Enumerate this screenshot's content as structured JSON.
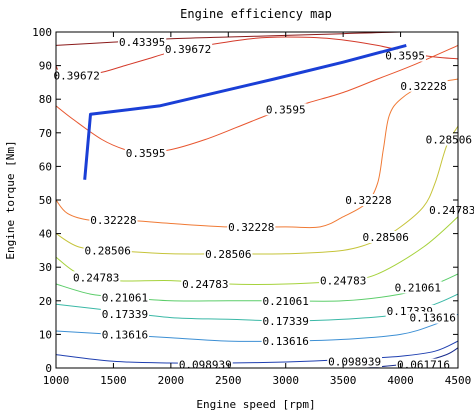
{
  "chart_data": {
    "type": "contour",
    "title": "Engine efficiency map",
    "xlabel": "Engine speed [rpm]",
    "ylabel": "Engine torque [Nm]",
    "xlim": [
      1000,
      4500
    ],
    "ylim": [
      0,
      100
    ],
    "xticks": [
      1000,
      1500,
      2000,
      2500,
      3000,
      3500,
      4000,
      4500
    ],
    "yticks": [
      0,
      10,
      20,
      30,
      40,
      50,
      60,
      70,
      80,
      90,
      100
    ],
    "grid": false,
    "contours": [
      {
        "level": "0.43395",
        "color": "#8b1a1a",
        "points": [
          [
            1000,
            96
          ],
          [
            1500,
            97
          ],
          [
            2000,
            98
          ],
          [
            2500,
            98.5
          ],
          [
            3000,
            99
          ],
          [
            3500,
            99.5
          ],
          [
            4000,
            100
          ],
          [
            4400,
            100
          ]
        ],
        "labels": [
          {
            "x": 1750,
            "y": 97
          }
        ]
      },
      {
        "level": "0.39672",
        "color": "#d43a2a",
        "points": [
          [
            1000,
            90
          ],
          [
            1050,
            87
          ],
          [
            1200,
            87
          ],
          [
            1400,
            88
          ],
          [
            1600,
            90
          ],
          [
            1800,
            92
          ],
          [
            2000,
            94
          ],
          [
            2300,
            96
          ],
          [
            2700,
            98
          ],
          [
            3000,
            98.5
          ],
          [
            3400,
            98
          ],
          [
            3800,
            96
          ],
          [
            4200,
            93
          ],
          [
            4500,
            92
          ]
        ],
        "labels": [
          {
            "x": 1180,
            "y": 87
          },
          {
            "x": 2150,
            "y": 95
          }
        ]
      },
      {
        "level": "0.3595",
        "color": "#e8562f",
        "points": [
          [
            1000,
            78
          ],
          [
            1150,
            74
          ],
          [
            1400,
            68
          ],
          [
            1600,
            65
          ],
          [
            1750,
            64
          ],
          [
            2000,
            65
          ],
          [
            2300,
            68
          ],
          [
            2600,
            72
          ],
          [
            2900,
            76
          ],
          [
            3200,
            79
          ],
          [
            3500,
            82
          ],
          [
            3800,
            86
          ],
          [
            4100,
            90
          ],
          [
            4500,
            96
          ]
        ],
        "labels": [
          {
            "x": 1780,
            "y": 64
          },
          {
            "x": 3000,
            "y": 77
          },
          {
            "x": 4040,
            "y": 93
          }
        ]
      },
      {
        "level": "0.32228",
        "color": "#f07a35",
        "points": [
          [
            1000,
            50
          ],
          [
            1100,
            46
          ],
          [
            1300,
            44
          ],
          [
            1600,
            44
          ],
          [
            2000,
            43
          ],
          [
            2500,
            42
          ],
          [
            3000,
            42
          ],
          [
            3300,
            42
          ],
          [
            3500,
            45
          ],
          [
            3700,
            49
          ],
          [
            3800,
            55
          ],
          [
            3850,
            65
          ],
          [
            3900,
            75
          ],
          [
            4000,
            80
          ],
          [
            4200,
            84
          ],
          [
            4500,
            86
          ]
        ],
        "labels": [
          {
            "x": 1500,
            "y": 44
          },
          {
            "x": 2700,
            "y": 42
          },
          {
            "x": 3720,
            "y": 50
          },
          {
            "x": 4200,
            "y": 84
          }
        ]
      },
      {
        "level": "0.28506",
        "color": "#c6c43a",
        "points": [
          [
            1000,
            40
          ],
          [
            1200,
            36
          ],
          [
            1500,
            35
          ],
          [
            2000,
            34
          ],
          [
            2500,
            34
          ],
          [
            3000,
            34
          ],
          [
            3500,
            35
          ],
          [
            3800,
            38
          ],
          [
            4000,
            42
          ],
          [
            4200,
            48
          ],
          [
            4300,
            55
          ],
          [
            4400,
            66
          ],
          [
            4500,
            72
          ]
        ],
        "labels": [
          {
            "x": 1450,
            "y": 35
          },
          {
            "x": 2500,
            "y": 34
          },
          {
            "x": 3870,
            "y": 39
          },
          {
            "x": 4420,
            "y": 68
          }
        ]
      },
      {
        "level": "0.24783",
        "color": "#a6d23c",
        "points": [
          [
            1000,
            33
          ],
          [
            1200,
            28
          ],
          [
            1500,
            26
          ],
          [
            2000,
            26
          ],
          [
            2500,
            25
          ],
          [
            3000,
            25
          ],
          [
            3500,
            26
          ],
          [
            3800,
            28
          ],
          [
            4200,
            36
          ],
          [
            4500,
            45
          ]
        ],
        "labels": [
          {
            "x": 1350,
            "y": 27
          },
          {
            "x": 2300,
            "y": 25
          },
          {
            "x": 3500,
            "y": 26
          },
          {
            "x": 4450,
            "y": 47
          }
        ]
      },
      {
        "level": "0.21061",
        "color": "#5ccd6a",
        "points": [
          [
            1000,
            25
          ],
          [
            1300,
            22
          ],
          [
            1600,
            21
          ],
          [
            2000,
            20
          ],
          [
            2500,
            20
          ],
          [
            3000,
            20
          ],
          [
            3500,
            20
          ],
          [
            4000,
            22
          ],
          [
            4300,
            25
          ],
          [
            4500,
            28
          ]
        ],
        "labels": [
          {
            "x": 1600,
            "y": 21
          },
          {
            "x": 3000,
            "y": 20
          },
          {
            "x": 4150,
            "y": 24
          }
        ]
      },
      {
        "level": "0.17339",
        "color": "#3ab8a6",
        "points": [
          [
            1000,
            19
          ],
          [
            1500,
            17
          ],
          [
            2000,
            15
          ],
          [
            2500,
            14.5
          ],
          [
            3000,
            14
          ],
          [
            3500,
            14.5
          ],
          [
            4000,
            16
          ],
          [
            4300,
            19
          ],
          [
            4500,
            22
          ]
        ],
        "labels": [
          {
            "x": 1600,
            "y": 16
          },
          {
            "x": 3000,
            "y": 14
          },
          {
            "x": 4080,
            "y": 17
          }
        ]
      },
      {
        "level": "0.13616",
        "color": "#3c8fd4",
        "points": [
          [
            1000,
            11
          ],
          [
            1500,
            10
          ],
          [
            2000,
            9
          ],
          [
            2500,
            8
          ],
          [
            3000,
            8
          ],
          [
            3500,
            8.5
          ],
          [
            4000,
            10
          ],
          [
            4300,
            13
          ],
          [
            4500,
            16
          ]
        ],
        "labels": [
          {
            "x": 1600,
            "y": 10
          },
          {
            "x": 3000,
            "y": 8
          },
          {
            "x": 4280,
            "y": 15
          }
        ]
      },
      {
        "level": "0.098939",
        "color": "#1f3fb0",
        "points": [
          [
            1000,
            4
          ],
          [
            1500,
            2
          ],
          [
            2000,
            1.5
          ],
          [
            2500,
            1.5
          ],
          [
            3000,
            1.8
          ],
          [
            3500,
            2.5
          ],
          [
            4000,
            3.5
          ],
          [
            4300,
            5
          ],
          [
            4500,
            8
          ]
        ],
        "labels": [
          {
            "x": 2300,
            "y": 1
          },
          {
            "x": 3600,
            "y": 2
          }
        ]
      },
      {
        "level": "0.061716",
        "color": "#172a8c",
        "points": [
          [
            3700,
            0
          ],
          [
            4000,
            1
          ],
          [
            4200,
            2
          ],
          [
            4400,
            4
          ],
          [
            4500,
            6
          ]
        ],
        "labels": [
          {
            "x": 4200,
            "y": 1
          }
        ]
      }
    ],
    "series": [
      {
        "color": "#1a3fd6",
        "x": [
          1250,
          1300,
          1900,
          2900,
          3500,
          4050
        ],
        "y": [
          56,
          75.5,
          78,
          86,
          91,
          96
        ]
      }
    ]
  }
}
